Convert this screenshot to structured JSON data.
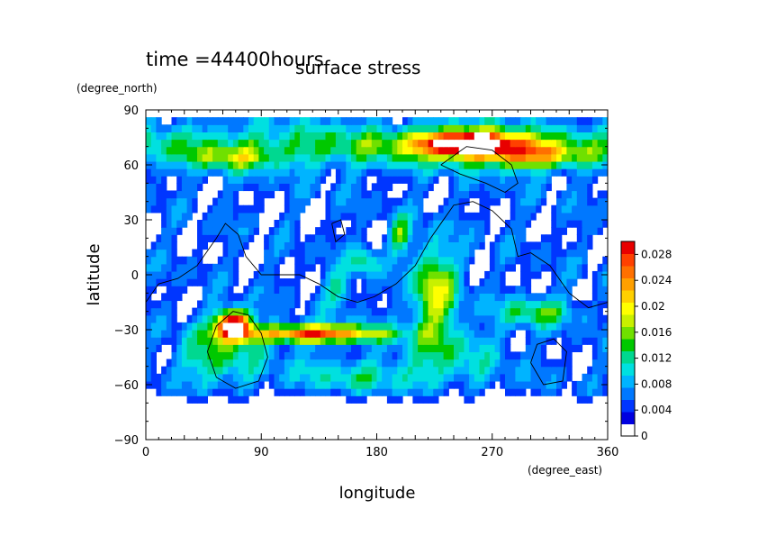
{
  "header": {
    "time_label": "time =44400hours",
    "title": "surface stress"
  },
  "chart_data": {
    "type": "heatmap",
    "title": "surface stress",
    "xlabel": "longitude",
    "ylabel": "latitude",
    "x_unit": "(degree_east)",
    "y_unit": "(degree_north)",
    "xlim": [
      0,
      360
    ],
    "ylim": [
      -90,
      90
    ],
    "xticks": [
      "0",
      "90",
      "180",
      "270",
      "360"
    ],
    "yticks": [
      "90",
      "60",
      "30",
      "0",
      "−30",
      "−60",
      "−90"
    ],
    "colorbar": {
      "range": [
        0,
        0.03
      ],
      "ticks": [
        "0",
        "0.004",
        "0.008",
        "0.012",
        "0.016",
        "0.02",
        "0.024",
        "0.028"
      ],
      "colors": [
        "#ffffff",
        "#0000e0",
        "#0036ff",
        "#0078ff",
        "#00b4ff",
        "#00e0e0",
        "#00d890",
        "#00c800",
        "#70e000",
        "#c8f000",
        "#ffff00",
        "#ffd000",
        "#ffa000",
        "#ff7000",
        "#ff4000",
        "#e80000"
      ]
    },
    "features": [
      {
        "name": "northern jet",
        "lon": [
          200,
          290
        ],
        "lat": [
          62,
          82
        ],
        "peak": 0.032
      },
      {
        "name": "southern jet",
        "lon": [
          100,
          170
        ],
        "lat": [
          -40,
          -25
        ],
        "peak": 0.028
      },
      {
        "name": "southern west maximum",
        "lon": [
          55,
          85
        ],
        "lat": [
          -33,
          -20
        ],
        "peak": 0.03
      },
      {
        "name": "northern band",
        "lon": [
          0,
          360
        ],
        "lat": [
          40,
          85
        ],
        "peak": 0.012
      }
    ]
  }
}
